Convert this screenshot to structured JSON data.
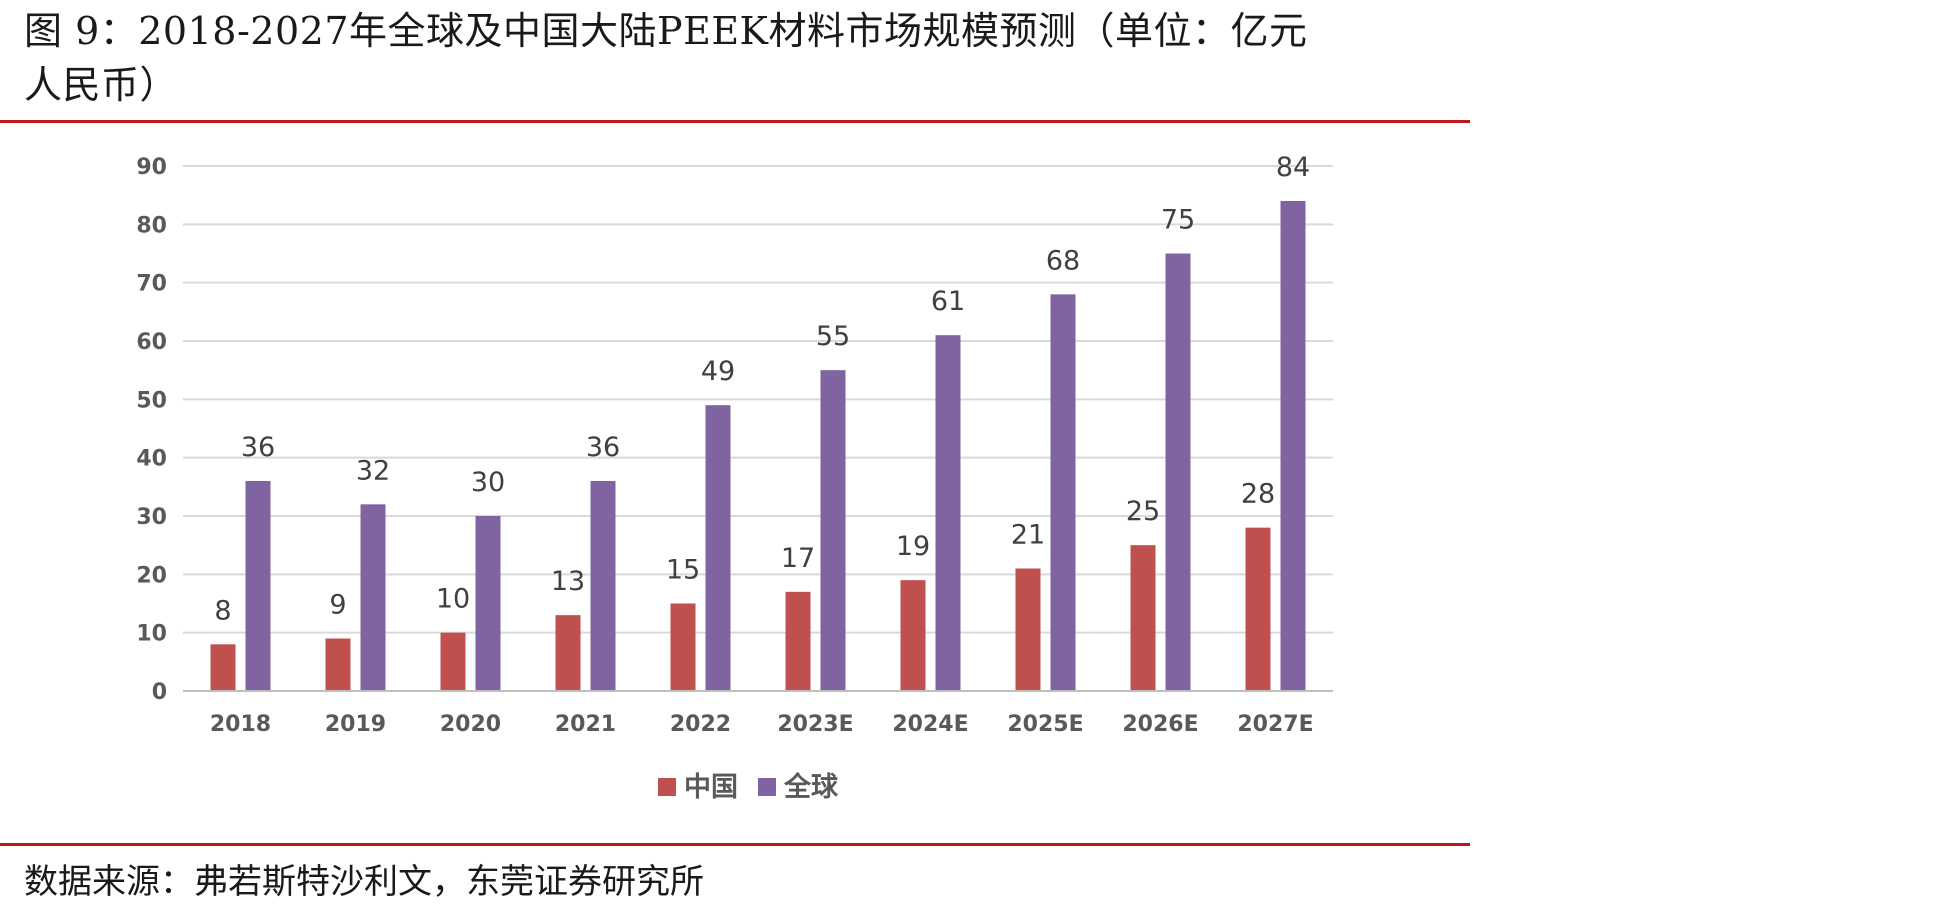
{
  "figure": {
    "title_line1": "图 9：2018-2027年全球及中国大陆PEEK材料市场规模预测（单位：亿元",
    "title_line2": "人民币）",
    "source": "数据来源：弗若斯特沙利文，东莞证券研究所"
  },
  "colors": {
    "rule": "#c0171c",
    "china": "#c0504d",
    "global": "#8064a2",
    "grid": "#d9d9d9",
    "axis_text": "#595959",
    "label_text": "#404040"
  },
  "chart_data": {
    "type": "bar",
    "title": "",
    "xlabel": "",
    "ylabel": "",
    "categories": [
      "2018",
      "2019",
      "2020",
      "2021",
      "2022",
      "2023E",
      "2024E",
      "2025E",
      "2026E",
      "2027E"
    ],
    "series": [
      {
        "name": "中国",
        "values": [
          8,
          9,
          10,
          13,
          15,
          17,
          19,
          21,
          25,
          28
        ]
      },
      {
        "name": "全球",
        "values": [
          36,
          32,
          30,
          36,
          49,
          55,
          61,
          68,
          75,
          84
        ]
      }
    ],
    "ylim": [
      0,
      90
    ],
    "yticks": [
      0,
      10,
      20,
      30,
      40,
      50,
      60,
      70,
      80,
      90
    ],
    "grid": true,
    "data_labels": true,
    "legend_position": "bottom-center"
  }
}
